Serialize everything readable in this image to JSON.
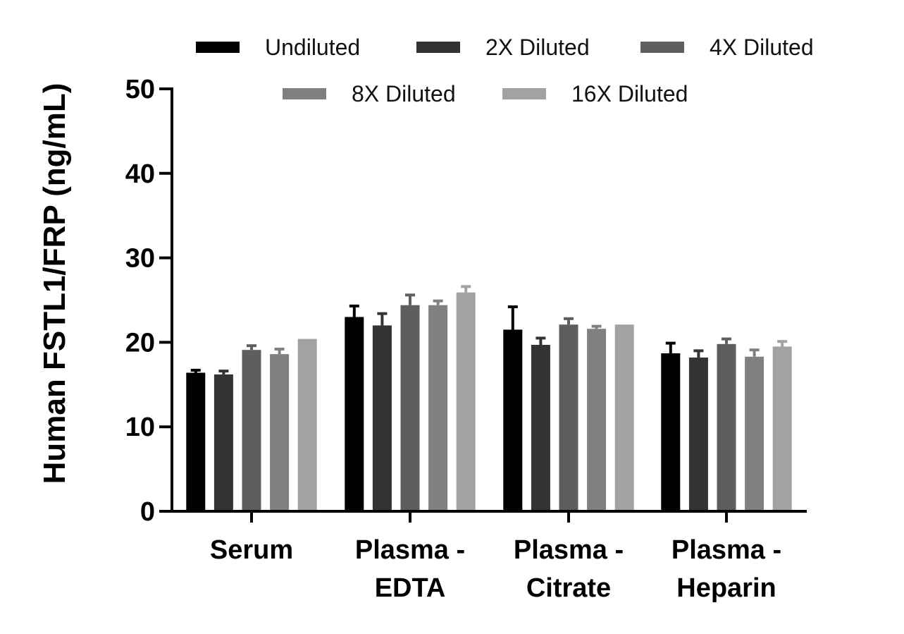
{
  "chart_data": {
    "type": "bar",
    "title": "",
    "xlabel": "",
    "ylabel": "Human FSTL1/FRP (ng/mL)",
    "ylim": [
      0,
      50
    ],
    "yticks": [
      "0",
      "10",
      "20",
      "30",
      "40",
      "50"
    ],
    "grid": false,
    "legend_position": "top",
    "categories": [
      [
        "Serum"
      ],
      [
        "Plasma -",
        "EDTA"
      ],
      [
        "Plasma -",
        "Citrate"
      ],
      [
        "Plasma -",
        "Heparin"
      ]
    ],
    "series": [
      {
        "name": "Undiluted",
        "color": "#000000",
        "values": [
          16.4,
          23.0,
          21.5,
          18.7
        ],
        "errors": [
          0.3,
          1.3,
          2.7,
          1.2
        ]
      },
      {
        "name": "2X Diluted",
        "color": "#333333",
        "values": [
          16.2,
          22.0,
          19.7,
          18.2
        ],
        "errors": [
          0.4,
          1.4,
          0.8,
          0.8
        ]
      },
      {
        "name": "4X Diluted",
        "color": "#5e5e5e",
        "values": [
          19.1,
          24.4,
          22.1,
          19.8
        ],
        "errors": [
          0.5,
          1.2,
          0.7,
          0.6
        ]
      },
      {
        "name": "8X Diluted",
        "color": "#808080",
        "values": [
          18.6,
          24.4,
          21.6,
          18.3
        ],
        "errors": [
          0.6,
          0.5,
          0.3,
          0.8
        ]
      },
      {
        "name": "16X Diluted",
        "color": "#a2a2a4",
        "values": [
          20.4,
          25.9,
          22.1,
          19.5
        ],
        "errors": [
          0,
          0.7,
          0,
          0.6
        ]
      }
    ]
  }
}
